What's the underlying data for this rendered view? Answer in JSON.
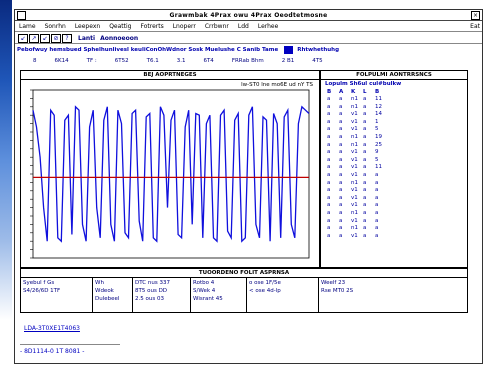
{
  "window": {
    "title": "Grawmbak 4Prax   owu 4Prax   Oeodtetmosne",
    "close_glyph": "×"
  },
  "menubar": {
    "items": [
      "Lame",
      "Sonrhn",
      "Leepexn",
      "Qeattig",
      "Fotrerts",
      "Lnoperr",
      "Crrbwnr",
      "Ldd",
      "Lerhee"
    ],
    "right_text": "Eat"
  },
  "toolbar": {
    "buttons": [
      "↙",
      "↗",
      "↙",
      "⊘",
      "?"
    ],
    "label1": "Lanti",
    "label2": "Aonnoeoon"
  },
  "statusline": {
    "left": "Pebofwuy hemsbued Sphelhunlivesl keuliConOhWdnor Sosk Muelushe C Sanib Tame",
    "right": "Rhtwhethuhg"
  },
  "valrow": {
    "values": [
      "8",
      "6K14",
      "TF :",
      "6T52",
      "T6.1",
      "3.1",
      "6T4",
      "FRRab Bhm",
      "2 B1",
      "4T5"
    ]
  },
  "chart": {
    "header": "BEJ AOPRTNEGES",
    "readout": "lw-ST0  lne mo6E  ud nY  TS"
  },
  "chart_data": {
    "type": "line",
    "title": "BEJ AOPRTNEGES",
    "series": [
      {
        "values": [
          88,
          78,
          60,
          30,
          10,
          88,
          85,
          12,
          10,
          82,
          85,
          14,
          90,
          88,
          20,
          10,
          78,
          88,
          30,
          12,
          82,
          90,
          20,
          10,
          88,
          80,
          15,
          12,
          86,
          88,
          22,
          10,
          84,
          86,
          12,
          10,
          90,
          85,
          30,
          82,
          88,
          14,
          12,
          78,
          88,
          20,
          86,
          85,
          12,
          80,
          85,
          12,
          10,
          85,
          88,
          16,
          12,
          82,
          86,
          10,
          12,
          85,
          90,
          20,
          12,
          84,
          82,
          10,
          86,
          80,
          12,
          84,
          88,
          20,
          12,
          80,
          90,
          88,
          86
        ]
      },
      {
        "values": [
          48,
          48
        ]
      }
    ],
    "ylim": [
      0,
      100
    ],
    "colors": [
      "#1010dd",
      "#c00000"
    ]
  },
  "table": {
    "header": "FOLPULMI AONTRRSNCS",
    "subheader": "Lopulm  Sh6ul cul#bulkw",
    "columns": [
      "B",
      "A",
      "K",
      "L",
      "B"
    ],
    "rows": [
      [
        "a",
        "a",
        "n1",
        "a",
        "11"
      ],
      [
        "a",
        "a",
        "n1",
        "a",
        "12"
      ],
      [
        "a",
        "a",
        "v1",
        "a",
        "14"
      ],
      [
        "a",
        "a",
        "v1",
        "a",
        "1"
      ],
      [
        "a",
        "a",
        "v1",
        "a",
        "5"
      ],
      [
        "a",
        "a",
        "n1",
        "a",
        "19"
      ],
      [
        "a",
        "a",
        "n1",
        "a",
        "25"
      ],
      [
        "a",
        "a",
        "v1",
        "a",
        "9"
      ],
      [
        "a",
        "a",
        "v1",
        "a",
        "5"
      ],
      [
        "a",
        "a",
        "v1",
        "a",
        "11"
      ],
      [
        "a",
        "a",
        "v1",
        "a",
        "a"
      ],
      [
        "a",
        "a",
        "n1",
        "a",
        "a"
      ],
      [
        "a",
        "a",
        "v1",
        "a",
        "a"
      ],
      [
        "a",
        "a",
        "v1",
        "a",
        "a"
      ],
      [
        "a",
        "a",
        "v1",
        "a",
        "a"
      ],
      [
        "a",
        "a",
        "n1",
        "a",
        "a"
      ],
      [
        "a",
        "a",
        "v1",
        "a",
        "a"
      ],
      [
        "a",
        "a",
        "n1",
        "a",
        "a"
      ],
      [
        "a",
        "a",
        "v1",
        "a",
        "a"
      ]
    ]
  },
  "bottom": {
    "header": "TUOORDENO FOLIT ASPRNSA",
    "col1": [
      "Syebul f Gs",
      "S4/26/6D 1TF"
    ],
    "col2": [
      "Wh",
      "Wdeok",
      "Dulebeel"
    ],
    "col3": [
      "DTC nus 337",
      "8T5 ous DD",
      "2.5 ous 03"
    ],
    "col4": [
      "Rotbo   4",
      "S/Wek   4",
      "Wisrant 45"
    ],
    "col5": [
      "o   ose 1F/5e",
      "<   ose 4d-lp"
    ],
    "col6": [
      "Weelf 23",
      "Rse MT0 2S"
    ]
  },
  "footer": {
    "link": "LDA-3T0XE1T4063",
    "code": "- 8D1114-0 1T 8081 -"
  }
}
